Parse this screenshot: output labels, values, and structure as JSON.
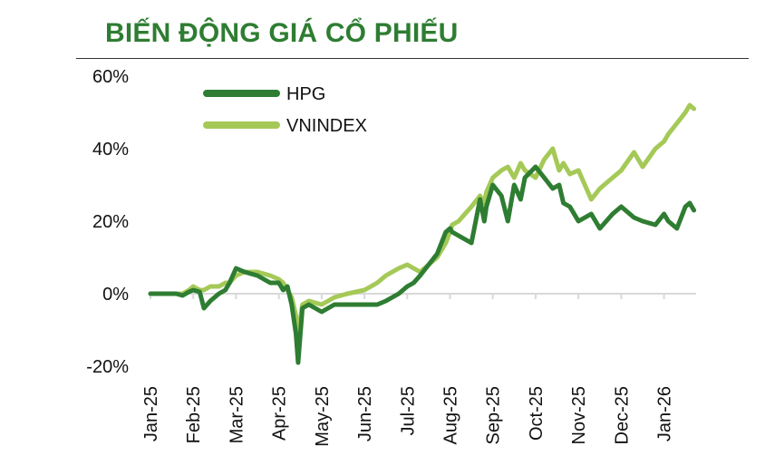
{
  "title": "BIẾN ĐỘNG GIÁ CỔ PHIẾU",
  "colors": {
    "title": "#2e7d32",
    "hpg": "#2e7d32",
    "vnindex": "#a5c957",
    "zero_line": "#d9d9d9"
  },
  "chart_data": {
    "type": "line",
    "title": "BIẾN ĐỘNG GIÁ CỔ PHIẾU",
    "xlabel": "",
    "ylabel": "",
    "ylim": [
      -20,
      60
    ],
    "yticks": [
      -20,
      0,
      20,
      40,
      60
    ],
    "ytick_labels": [
      "-20%",
      "0%",
      "20%",
      "40%",
      "60%"
    ],
    "xlim": [
      0,
      12.75
    ],
    "xticks": [
      0,
      1,
      2,
      3,
      4,
      5,
      6,
      7,
      8,
      9,
      10,
      11,
      12
    ],
    "xtick_labels": [
      "Jan-25",
      "Feb-25",
      "Mar-25",
      "Apr-25",
      "May-25",
      "Jun-25",
      "Jul-25",
      "Aug-25",
      "Sep-25",
      "Oct-25",
      "Nov-25",
      "Dec-25",
      "Jan-26"
    ],
    "legend": "top-left",
    "grid": false,
    "series": [
      {
        "name": "HPG",
        "color": "#2e7d32",
        "x": [
          0,
          0.6,
          0.75,
          0.9,
          1.0,
          1.15,
          1.25,
          1.4,
          1.6,
          1.75,
          1.85,
          2.0,
          2.2,
          2.5,
          2.8,
          3.0,
          3.1,
          3.2,
          3.3,
          3.4,
          3.45,
          3.55,
          3.7,
          4.0,
          4.3,
          4.6,
          5.0,
          5.3,
          5.5,
          5.8,
          6.0,
          6.15,
          6.3,
          6.5,
          6.7,
          6.9,
          7.0,
          7.05,
          7.2,
          7.35,
          7.5,
          7.7,
          7.8,
          7.85,
          8.0,
          8.2,
          8.35,
          8.5,
          8.65,
          8.75,
          9.0,
          9.2,
          9.4,
          9.55,
          9.65,
          9.8,
          10.0,
          10.3,
          10.5,
          10.8,
          11.0,
          11.3,
          11.5,
          11.8,
          12.0,
          12.1,
          12.3,
          12.5,
          12.6,
          12.7
        ],
        "values": [
          0,
          0,
          -0.5,
          0.5,
          1,
          0.5,
          -4,
          -2,
          0,
          1,
          3,
          7,
          6,
          5,
          3,
          3,
          1,
          2,
          -3,
          -11,
          -19,
          -4,
          -3,
          -5,
          -3,
          -3,
          -3,
          -3,
          -2,
          0,
          2,
          3,
          5,
          8,
          11,
          17,
          18,
          17,
          16,
          15,
          14,
          26,
          20,
          24,
          30,
          27,
          20,
          30,
          26,
          32,
          35,
          32,
          29,
          30,
          25,
          24,
          20,
          22,
          18,
          22,
          24,
          21,
          20,
          19,
          22,
          20,
          18,
          24,
          25,
          23
        ]
      },
      {
        "name": "VNINDEX",
        "color": "#a5c957",
        "x": [
          0,
          0.6,
          0.75,
          0.9,
          1.0,
          1.15,
          1.25,
          1.4,
          1.6,
          1.75,
          1.85,
          2.0,
          2.2,
          2.5,
          2.8,
          3.0,
          3.1,
          3.2,
          3.3,
          3.4,
          3.45,
          3.55,
          3.7,
          4.0,
          4.3,
          4.6,
          5.0,
          5.3,
          5.5,
          5.8,
          6.0,
          6.15,
          6.3,
          6.5,
          6.7,
          6.9,
          7.0,
          7.05,
          7.2,
          7.35,
          7.5,
          7.7,
          7.8,
          7.85,
          8.0,
          8.2,
          8.35,
          8.5,
          8.65,
          8.75,
          9.0,
          9.2,
          9.4,
          9.55,
          9.65,
          9.8,
          10.0,
          10.3,
          10.5,
          10.8,
          11.0,
          11.3,
          11.5,
          11.8,
          12.0,
          12.1,
          12.3,
          12.5,
          12.6,
          12.7
        ],
        "values": [
          0,
          0,
          0,
          1,
          2,
          1,
          1,
          2,
          2,
          3,
          3,
          5,
          6,
          6,
          5,
          4,
          3,
          1,
          -1,
          -6,
          -12,
          -3,
          -2,
          -3,
          -1,
          0,
          1,
          3,
          5,
          7,
          8,
          7,
          6,
          8,
          10,
          14,
          17,
          19,
          20,
          22,
          24,
          27,
          25,
          28,
          32,
          34,
          35,
          32,
          36,
          34,
          32,
          37,
          40,
          34,
          36,
          33,
          34,
          26,
          29,
          32,
          34,
          39,
          35,
          40,
          42,
          44,
          47,
          50,
          52,
          51
        ]
      }
    ]
  }
}
